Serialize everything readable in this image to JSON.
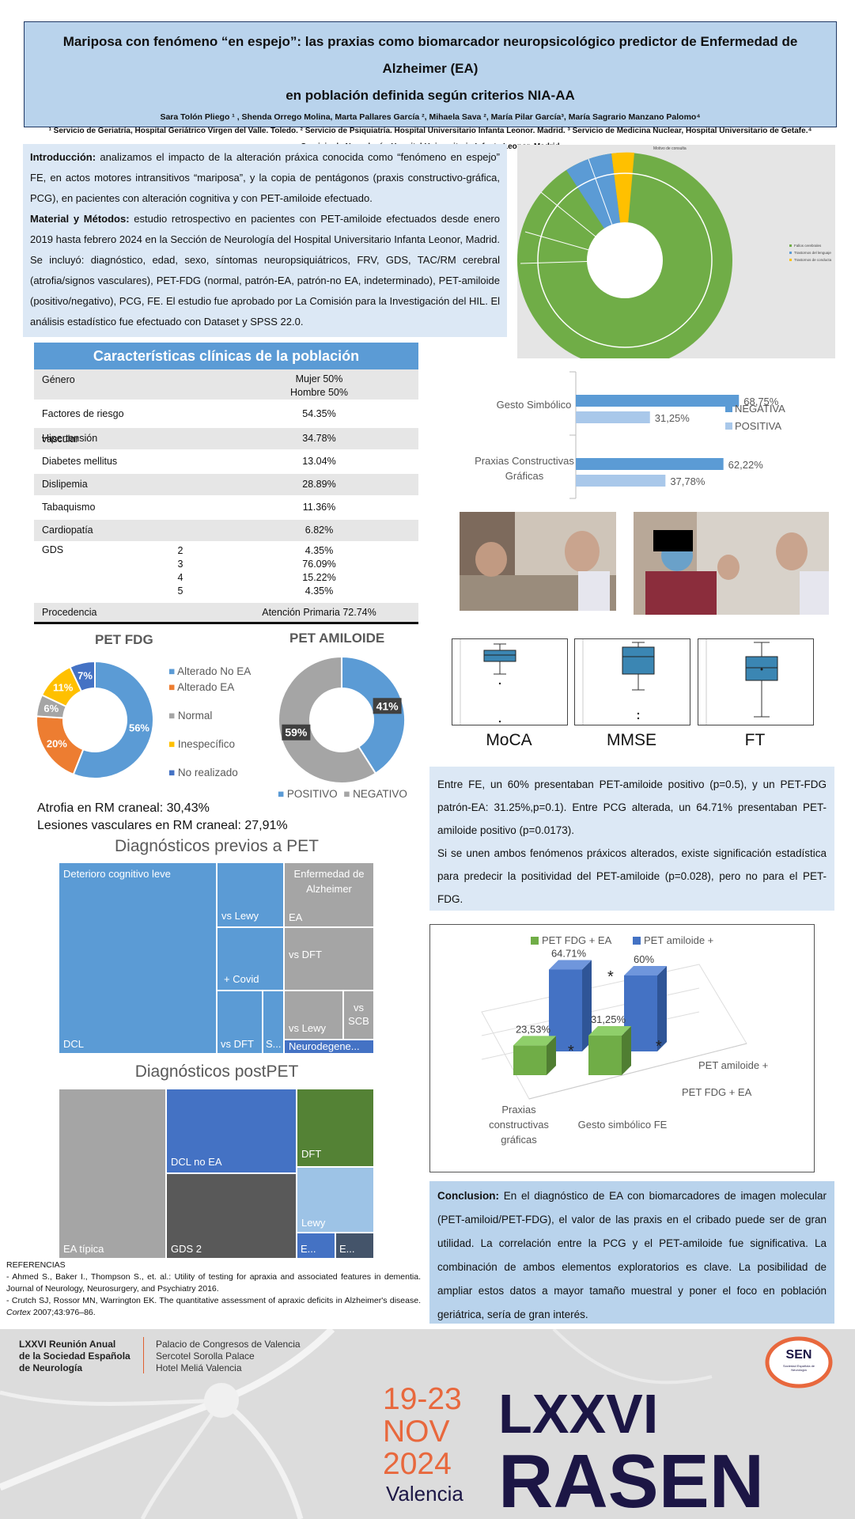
{
  "header": {
    "title_line1": "Mariposa con fenómeno “en espejo”: las praxias como biomarcador neuropsicológico predictor de Enfermedad de Alzheimer (EA)",
    "title_line2": "en población definida según criterios NIA-AA",
    "authors": "Sara Tolón Pliego ¹ , Shenda Orrego Molina, Marta Pallares García ², Mihaela Sava ², María Pilar García³, María Sagrario Manzano Palomo⁴",
    "affiliations": "¹ Servicio de Geriatría, Hospital Geriátrico Virgen del Valle. Toledo. ² Servicio de Psiquiatría. Hospital Universitario Infanta Leonor. Madrid. ³ Servicio de Medicina Nuclear, Hospital Universitario de Getafe.⁴ Servicio de Neurología, Hospital Universitario Infanta Leonor. Madrid"
  },
  "intro": {
    "intro_label": "Introducción:",
    "intro_text": " analizamos el impacto de la alteración práxica conocida como “fenómeno en espejo” FE, en actos motores intransitivos “mariposa”, y la copia de pentágonos (praxis constructivo-gráfica, PCG), en pacientes con alteración cognitiva y con PET-amiloide efectuado.",
    "methods_label": "Material y Métodos:",
    "methods_text": " estudio retrospectivo en pacientes con PET-amiloide efectuados desde enero 2019 hasta febrero 2024 en la Sección de Neurología del Hospital Universitario Infanta Leonor, Madrid. Se incluyó: diagnóstico, edad, sexo, síntomas neuropsiquiátricos, FRV, GDS, TAC/RM cerebral (atrofia/signos vasculares), PET-FDG (normal, patrón-EA, patrón-no EA, indeterminado), PET-amiloide (positivo/negativo), PCG, FE. El estudio fue aprobado por La Comisión para la Investigación del HIL. El análisis estadístico fue efectuado con Dataset y SPSS 22.0."
  },
  "sunburst": {
    "title": "Motivo de consulta",
    "legend": [
      "Fallos cerebrales",
      "Trastornos del lenguaje",
      "Trastornos de conducta"
    ],
    "colors": [
      "#70ad47",
      "#5b9bd5",
      "#ffc000"
    ]
  },
  "table": {
    "title": "Características clínicas de la población",
    "rows": [
      {
        "label": "Género",
        "value": "Mujer 50%",
        "value2": "Hombre 50%"
      },
      {
        "label": "Factores de riesgo vascular",
        "value": "54.35%"
      },
      {
        "label": "Hipertensión",
        "value": "34.78%"
      },
      {
        "label": "Diabetes mellitus",
        "value": "13.04%"
      },
      {
        "label": "Dislipemia",
        "value": "28.89%"
      },
      {
        "label": "Tabaquismo",
        "value": "11.36%"
      },
      {
        "label": "Cardiopatía",
        "value": "6.82%"
      }
    ],
    "gds_label": "GDS",
    "gds": [
      {
        "k": "2",
        "v": "4.35%"
      },
      {
        "k": "3",
        "v": "76.09%"
      },
      {
        "k": "4",
        "v": "15.22%"
      },
      {
        "k": "5",
        "v": "4.35%"
      }
    ],
    "origin_label": "Procedencia",
    "origin_value": "Atención Primaria 72.74%"
  },
  "photos": {
    "left": "Gesto mariposa 1",
    "right": "Gesto mariposa 2"
  },
  "boxplots": [
    {
      "label": "MoCA"
    },
    {
      "label": "MMSE"
    },
    {
      "label": "FT"
    }
  ],
  "mri": {
    "atrophy": "Atrofia en RM craneal: 30,43%",
    "vascular": "Lesiones vasculares en RM craneal: 27,91%"
  },
  "results": {
    "p1": "Entre FE, un 60% presentaban PET-amiloide positivo (p=0.5), y un PET-FDG patrón-EA: 31.25%,p=0.1). Entre PCG alterada, un 64.71% presentaban PET-amiloide positivo (p=0.0173).",
    "p2": "Si se unen ambos fenómenos práxicos alterados, existe significación estadística para predecir la positividad del PET-amiloide (p=0.028), pero no para el PET-FDG."
  },
  "conclusion": {
    "label": "Conclusion:",
    "text": " En el diagnóstico de EA con biomarcadores de imagen molecular (PET-amiloid/PET-FDG), el valor de las praxis en el cribado puede ser de gran utilidad. La correlación entre la PCG y el PET-amiloide fue significativa. La combinación de ambos elementos exploratorios es clave. La posibilidad de ampliar estos datos a mayor tamaño muestral y poner el foco en población geriátrica, sería de gran interés."
  },
  "refs": {
    "title": "REFERENCIAS",
    "r1": "- Ahmed S., Baker I., Thompson S., et. al.: Utility of testing for apraxia and associated features in dementia. Journal of Neurology, Neurosurgery, and Psychiatry 2016.",
    "r2a": "- Crutch SJ, Rossor MN, Warrington EK. The quantitative assessment of apraxic deficits in Alzheimer's disease. ",
    "r2b": "Cortex",
    "r2c": " 2007;43:976–86."
  },
  "footer": {
    "org_line1": "LXXVI Reunión Anual",
    "org_line2": "de la Sociedad Española",
    "org_line3": "de Neurología",
    "venue1": "Palacio de Congresos de Valencia",
    "venue2": "Sercotel Sorolla Palace",
    "venue3": "Hotel Meliá Valencia",
    "dates": "19-23",
    "month": "NOV",
    "year": "2024",
    "city": "Valencia",
    "big1": "LXXVI",
    "big2": "RASEN",
    "sen": "SEN",
    "sen_sub": "Sociedad Española de Neurología"
  },
  "chart_data": [
    {
      "type": "bar",
      "orientation": "horizontal",
      "categories": [
        "Gesto Simbólico",
        "Praxias Constructivas Gráficas"
      ],
      "series": [
        {
          "name": "NEGATIVA",
          "values": [
            68.75,
            62.22
          ],
          "labels": [
            "68,75%",
            "62,22%"
          ],
          "color": "#5b9bd5"
        },
        {
          "name": "POSITIVA",
          "values": [
            31.25,
            37.78
          ],
          "labels": [
            "31,25%",
            "37,78%"
          ],
          "color": "#a9c8ea"
        }
      ]
    },
    {
      "type": "pie",
      "title": "PET FDG",
      "slices": [
        {
          "name": "Alterado No EA",
          "value": 56,
          "label": "56%",
          "color": "#5b9bd5"
        },
        {
          "name": "Alterado EA",
          "value": 20,
          "label": "20%",
          "color": "#ed7d31"
        },
        {
          "name": "Normal",
          "value": 6,
          "label": "6%",
          "color": "#a5a5a5"
        },
        {
          "name": "Inespecífico",
          "value": 11,
          "label": "11%",
          "color": "#ffc000"
        },
        {
          "name": "No realizado",
          "value": 7,
          "label": "7%",
          "color": "#4472c4"
        }
      ]
    },
    {
      "type": "pie",
      "title": "PET AMILOIDE",
      "slices": [
        {
          "name": "POSITIVO",
          "value": 41,
          "label": "41%",
          "color": "#5b9bd5"
        },
        {
          "name": "NEGATIVO",
          "value": 59,
          "label": "59%",
          "color": "#a5a5a5"
        }
      ]
    },
    {
      "type": "table",
      "title": "Diagnósticos previos a PET",
      "tiles": [
        "Deterioro cognitivo leve",
        "DCL",
        "vs Lewy",
        "+ Covid",
        "vs DFT",
        "S...",
        "Enfermedad de Alzheimer",
        "EA",
        "vs DFT",
        "vs Lewy",
        "vs SCB",
        "Neurodegene..."
      ]
    },
    {
      "type": "table",
      "title": "Diagnósticos postPET",
      "tiles": [
        "EA típica",
        "DCL no EA",
        "GDS 2",
        "DFT",
        "Lewy",
        "E...",
        "E..."
      ]
    },
    {
      "type": "bar",
      "title": "",
      "categories": [
        "Praxias constructivas gráficas",
        "Gesto simbólico FE"
      ],
      "series": [
        {
          "name": "PET FDG + EA",
          "values": [
            23.53,
            31.25
          ],
          "labels": [
            "23,53%",
            "31,25%"
          ],
          "color": "#70ad47"
        },
        {
          "name": "PET amiloide +",
          "values": [
            64.71,
            60
          ],
          "labels": [
            "64.71%",
            "60%"
          ],
          "color": "#4472c4"
        }
      ],
      "annotations": [
        "*",
        "*",
        "*"
      ]
    }
  ]
}
